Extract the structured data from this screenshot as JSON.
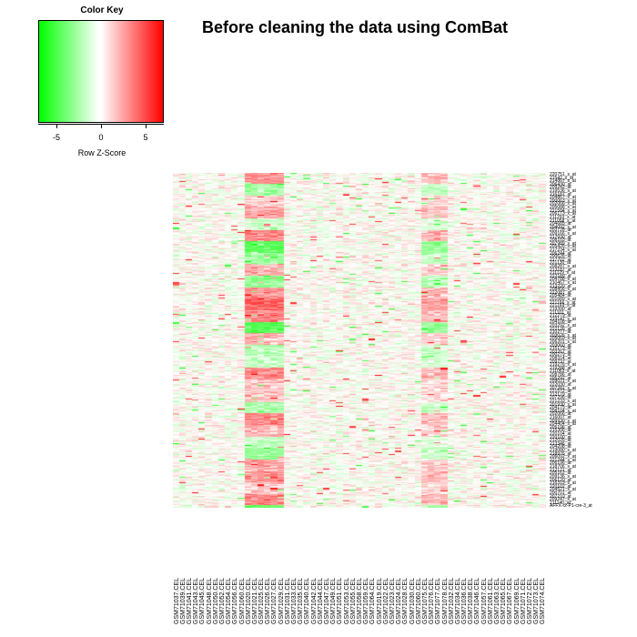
{
  "chart_data": {
    "type": "heatmap",
    "title": "Before cleaning the data using ComBat",
    "color_key": {
      "title": "Color Key",
      "xlabel": "Row Z-Score",
      "ticks": [
        "-5",
        "0",
        "5"
      ],
      "range": [
        -7,
        7
      ],
      "low_color": "#00ff00",
      "mid_color": "#ffffff",
      "high_color": "#ff0000"
    },
    "columns": [
      "GSM71037.CEL",
      "GSM71039.CEL",
      "GSM71041.CEL",
      "GSM71043.CEL",
      "GSM71045.CEL",
      "GSM71048.CEL",
      "GSM71050.CEL",
      "GSM71052.CEL",
      "GSM71054.CEL",
      "GSM71056.CEL",
      "GSM71060.CEL",
      "GSM71020.CEL",
      "GSM71021.CEL",
      "GSM71025.CEL",
      "GSM71026.CEL",
      "GSM71027.CEL",
      "GSM71029.CEL",
      "GSM71031.CEL",
      "GSM71033.CEL",
      "GSM71035.CEL",
      "GSM71040.CEL",
      "GSM71042.CEL",
      "GSM71044.CEL",
      "GSM71047.CEL",
      "GSM71049.CEL",
      "GSM71051.CEL",
      "GSM71053.CEL",
      "GSM71055.CEL",
      "GSM71058.CEL",
      "GSM71059.CEL",
      "GSM71064.CEL",
      "GSM71019.CEL",
      "GSM71022.CEL",
      "GSM71023.CEL",
      "GSM71024.CEL",
      "GSM71028.CEL",
      "GSM71030.CEL",
      "GSM71060.CEL",
      "GSM71075.CEL",
      "GSM71076.CEL",
      "GSM71077.CEL",
      "GSM71078.CEL",
      "GSM71032.CEL",
      "GSM71034.CEL",
      "GSM71036.CEL",
      "GSM71038.CEL",
      "GSM71046.CEL",
      "GSM71057.CEL",
      "GSM71061.CEL",
      "GSM71063.CEL",
      "GSM71065.CEL",
      "GSM71067.CEL",
      "GSM71069.CEL",
      "GSM71071.CEL",
      "GSM71072.CEL",
      "GSM71073.CEL",
      "GSM71074.CEL"
    ],
    "row_labels": [
      "220751_s_at",
      "21542_x_at",
      "214867_s_at",
      "206430_at",
      "209242_at",
      "219536_s_at",
      "216187_at",
      "204867_x_at",
      "200063_s_at",
      "202066_x_at",
      "205088_x_at",
      "221584_s_at",
      "206173_x_at",
      "211293_x_at",
      "211058_s_at",
      "204685_at",
      "204092_s_at",
      "203728_at",
      "209166_s_at",
      "217930_at",
      "208103_at",
      "207989_s_at",
      "205426_s_at",
      "217234_s_at",
      "206244_at",
      "200626_at",
      "217702_at",
      "221130_at",
      "208287_s_at",
      "213187_at",
      "211129_x_at",
      "222189_at",
      "204788_s_at",
      "210467_x_at",
      "213220_at",
      "208456_s_at",
      "222087_at",
      "205484_at",
      "201689_s_at",
      "221166_s_at",
      "221169_s_at",
      "219390_at",
      "211101_at",
      "212279_at",
      "219147_s_at",
      "204108_at",
      "203292_s_at",
      "222126_at",
      "210277_at",
      "203026_s_at",
      "205069_s_at",
      "206201_s_at",
      "203060_at",
      "215173_at",
      "203267_at",
      "200279_at",
      "208314_at",
      "209737_at",
      "219276_x_at",
      "219288_at",
      "211063_s_at",
      "208786_at",
      "205292_at",
      "209021_x_at",
      "222030_at",
      "207281_x_at",
      "221572_at",
      "212179_at",
      "207296_at",
      "221233_s_at",
      "201930_s_at",
      "204175_at",
      "208104_s_at",
      "202066_at",
      "216007_at",
      "209930_s_at",
      "204404_s_at",
      "205196_at",
      "215306_at",
      "220104_at",
      "220100_at",
      "212026_at",
      "213346_at",
      "204208_at",
      "219080_s_at",
      "218976_at",
      "206092_x_at",
      "221244_s_at",
      "206196_at",
      "218706_s_at",
      "212121_at",
      "205162_at",
      "209136_s_at",
      "206120_at",
      "216319_s_at",
      "220102_at",
      "204521_s_at",
      "200701_at",
      "207210_at",
      "209247_x_at",
      "211140_at",
      "AFFX-r2-P1-cre-3_at"
    ],
    "n_rows": 350,
    "value_range": [
      -7,
      7
    ]
  }
}
